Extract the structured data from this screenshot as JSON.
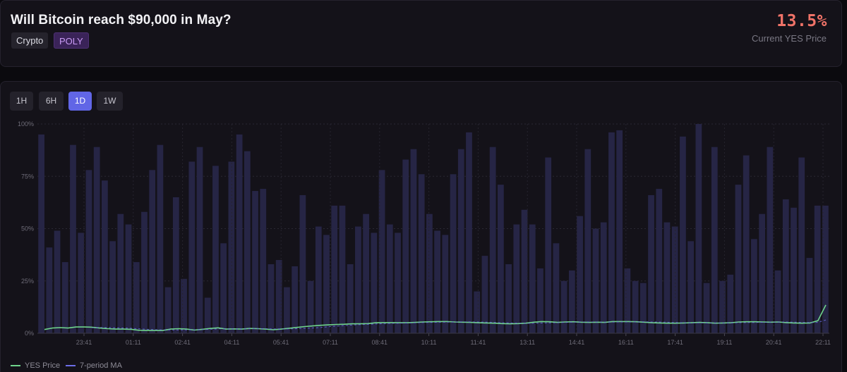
{
  "market": {
    "title": "Will Bitcoin reach $90,000 in May?",
    "tags": [
      "Crypto",
      "POLY"
    ],
    "current_price": "13.5%",
    "current_price_label": "Current YES Price"
  },
  "time_ranges": [
    {
      "label": "1H",
      "active": false
    },
    {
      "label": "6H",
      "active": false
    },
    {
      "label": "1D",
      "active": true
    },
    {
      "label": "1W",
      "active": false
    }
  ],
  "legend": {
    "yes_price": "YES Price",
    "ma": "7-period MA"
  },
  "colors": {
    "price_line": "#6fd48c",
    "ma_line": "#6d6ee8",
    "bars": "#262545",
    "accent": "#6166e6",
    "price_text": "#f07368"
  },
  "chart_data": {
    "type": "line",
    "ylim": [
      0,
      100
    ],
    "y_ticks": [
      "0%",
      "25%",
      "50%",
      "75%",
      "100%"
    ],
    "x_ticks": [
      "23:41",
      "01:11",
      "02:41",
      "04:11",
      "05:41",
      "07:11",
      "08:41",
      "10:11",
      "11:41",
      "13:11",
      "14:41",
      "16:11",
      "17:41",
      "19:11",
      "20:41",
      "22:11"
    ],
    "volume_bars": [
      95,
      41,
      49,
      34,
      90,
      48,
      78,
      89,
      73,
      44,
      57,
      52,
      34,
      58,
      78,
      90,
      22,
      65,
      26,
      82,
      89,
      17,
      80,
      43,
      82,
      95,
      87,
      68,
      69,
      33,
      35,
      22,
      32,
      66,
      25,
      51,
      47,
      61,
      61,
      33,
      51,
      57,
      48,
      78,
      52,
      48,
      83,
      88,
      76,
      57,
      49,
      47,
      76,
      88,
      96,
      20,
      37,
      89,
      71,
      33,
      52,
      59,
      52,
      31,
      84,
      43,
      25,
      30,
      56,
      88,
      50,
      53,
      96,
      97,
      31,
      25,
      24,
      66,
      69,
      53,
      51,
      94,
      44,
      100,
      24,
      89,
      25,
      28,
      71,
      85,
      45,
      57,
      89,
      30,
      64,
      60,
      84,
      36,
      61,
      61
    ],
    "series": [
      {
        "name": "YES Price",
        "values": [
          1.8,
          2.5,
          2.7,
          2.5,
          3.0,
          3.0,
          2.9,
          2.5,
          2.2,
          2.0,
          2.0,
          1.9,
          1.4,
          1.3,
          1.3,
          1.3,
          2.0,
          2.2,
          2.0,
          1.5,
          1.9,
          2.3,
          2.6,
          2.0,
          2.1,
          2.0,
          2.3,
          2.2,
          2.0,
          1.7,
          2.0,
          2.4,
          2.8,
          3.2,
          3.5,
          3.8,
          4.0,
          4.2,
          4.3,
          4.5,
          4.5,
          4.6,
          5.0,
          5.1,
          5.1,
          5.0,
          5.0,
          5.2,
          5.4,
          5.5,
          5.6,
          5.6,
          5.4,
          5.3,
          5.2,
          5.0,
          4.9,
          4.8,
          4.6,
          4.5,
          4.6,
          4.8,
          5.3,
          5.6,
          5.5,
          5.2,
          5.4,
          5.5,
          5.3,
          5.2,
          5.3,
          5.2,
          5.6,
          5.6,
          5.6,
          5.5,
          5.3,
          5.0,
          4.9,
          4.8,
          4.8,
          4.9,
          5.0,
          5.2,
          5.0,
          4.8,
          4.9,
          5.0,
          5.4,
          5.5,
          5.5,
          5.4,
          5.3,
          5.4,
          5.1,
          4.9,
          4.8,
          4.9,
          6.0,
          13.5
        ]
      },
      {
        "name": "7-period MA",
        "values": [
          null,
          null,
          null,
          null,
          null,
          null,
          null,
          null,
          null,
          null,
          null,
          null,
          null,
          null,
          null,
          null,
          null,
          null,
          null,
          null,
          null,
          null,
          null,
          null,
          null,
          null,
          null,
          null,
          null,
          null,
          null,
          null,
          null,
          null,
          null,
          null,
          null,
          null,
          null,
          null,
          null,
          null,
          null,
          null,
          null,
          null,
          null,
          null,
          null,
          null,
          null,
          null,
          null,
          null,
          null,
          null,
          null,
          null,
          null,
          null,
          null,
          null,
          null,
          null,
          null,
          null,
          null,
          null,
          null,
          null,
          null,
          null,
          null,
          null,
          null,
          null,
          null,
          null,
          null,
          null,
          null,
          null,
          null,
          null,
          null,
          null,
          null,
          null,
          null,
          null,
          null,
          null,
          null,
          null,
          null,
          null,
          null,
          null,
          null,
          null
        ]
      }
    ]
  }
}
